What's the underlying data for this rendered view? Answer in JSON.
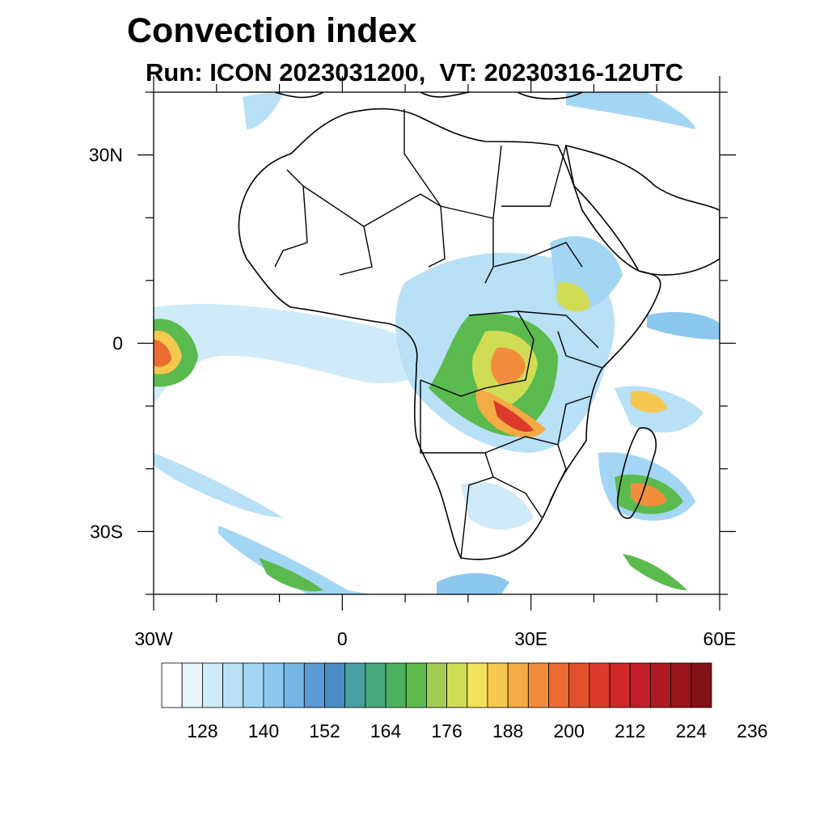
{
  "title": "Convection index",
  "subtitle": "Run: ICON 2023031200,  VT: 20230316-12UTC",
  "map": {
    "lon_range": [
      -30,
      60
    ],
    "lat_range": [
      -40,
      40
    ],
    "lat_ticks": [
      {
        "value": 30,
        "label": "30N"
      },
      {
        "value": 0,
        "label": "0"
      },
      {
        "value": -30,
        "label": "30S"
      }
    ],
    "lon_ticks": [
      {
        "value": -30,
        "label": "30W"
      },
      {
        "value": 0,
        "label": "0"
      },
      {
        "value": 30,
        "label": "30E"
      },
      {
        "value": 60,
        "label": "60E"
      }
    ]
  },
  "colorbar": {
    "labels": [
      "128",
      "140",
      "152",
      "164",
      "176",
      "188",
      "200",
      "212",
      "224",
      "236"
    ],
    "colors": [
      "#ffffff",
      "#e6f4fc",
      "#cfeaf8",
      "#b8e0f6",
      "#a3d6f5",
      "#8cc8ee",
      "#75b4e4",
      "#5b9ad3",
      "#4a8ec4",
      "#4aa0a0",
      "#49a77c",
      "#4bb35d",
      "#5bba4e",
      "#a3cc52",
      "#d1dc55",
      "#f0e35b",
      "#f6c84f",
      "#f5ab43",
      "#f28e3b",
      "#ec6c31",
      "#e4512d",
      "#dc3a2b",
      "#d2282a",
      "#c11e27",
      "#ad1a22",
      "#98161c",
      "#831116"
    ]
  }
}
